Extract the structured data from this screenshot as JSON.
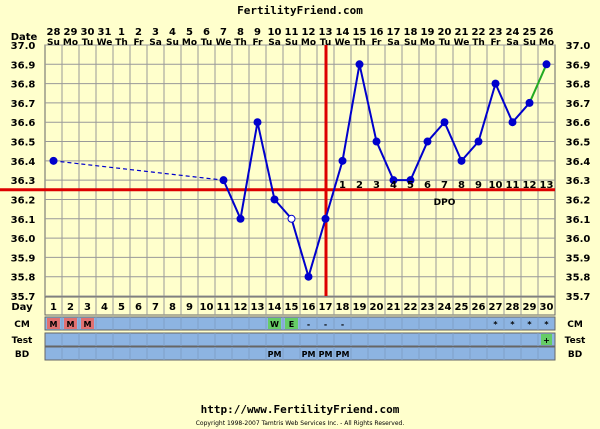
{
  "header": {
    "site": "FertilityFriend.com",
    "date_label": "Date",
    "day_label": "Day",
    "dpo_label": "DPO"
  },
  "footer": {
    "url": "http://www.FertilityFriend.com",
    "copyright": "Copyright 1998-2007 Tamtris Web Services Inc. - All Rights Reserved."
  },
  "rows": {
    "ch": "CM",
    "test": "Test",
    "bd": "BD"
  },
  "colors": {
    "background": "#ffffcc",
    "plot_bg": "#ffffcc",
    "grid": "#999999",
    "temp_line": "#0000cc",
    "coverline": "#dd0000",
    "strip": "#8db4e2",
    "menses": "#e07070",
    "fertile": "#66cc66",
    "projection": "#22aa22"
  },
  "chart_data": {
    "type": "line",
    "dates": [
      "28",
      "29",
      "30",
      "31",
      "1",
      "2",
      "3",
      "4",
      "5",
      "6",
      "7",
      "8",
      "9",
      "10",
      "11",
      "12",
      "13",
      "14",
      "15",
      "16",
      "17",
      "18",
      "19",
      "20",
      "21",
      "22",
      "23",
      "24",
      "25",
      "26"
    ],
    "weekdays": [
      "Su",
      "Mo",
      "Tu",
      "We",
      "Th",
      "Fr",
      "Sa",
      "Su",
      "Mo",
      "Tu",
      "We",
      "Th",
      "Fr",
      "Sa",
      "Su",
      "Mo",
      "Tu",
      "We",
      "Th",
      "Fr",
      "Sa",
      "Su",
      "Mo",
      "Tu",
      "We",
      "Th",
      "Fr",
      "Sa",
      "Su",
      "Mo"
    ],
    "cycle_days": [
      "1",
      "2",
      "3",
      "4",
      "5",
      "6",
      "7",
      "8",
      "9",
      "10",
      "11",
      "12",
      "13",
      "14",
      "15",
      "16",
      "17",
      "18",
      "19",
      "20",
      "21",
      "22",
      "23",
      "24",
      "25",
      "26",
      "27",
      "28",
      "29",
      "30"
    ],
    "temperatures": [
      36.4,
      null,
      null,
      null,
      null,
      null,
      null,
      null,
      null,
      null,
      36.3,
      36.1,
      36.6,
      36.2,
      36.1,
      35.8,
      36.1,
      36.4,
      36.9,
      36.5,
      36.3,
      36.3,
      36.5,
      36.6,
      36.4,
      36.5,
      36.8,
      36.6,
      36.7,
      36.9
    ],
    "discarded": [
      false,
      false,
      false,
      false,
      false,
      false,
      false,
      false,
      false,
      false,
      false,
      false,
      false,
      false,
      true,
      false,
      false,
      false,
      false,
      false,
      false,
      false,
      false,
      false,
      false,
      false,
      false,
      false,
      false,
      false
    ],
    "dotted_segment_days": [
      1,
      11
    ],
    "projected_segment_days": [
      29,
      30
    ],
    "ylim": [
      35.7,
      37.0
    ],
    "yticks": [
      "37.0",
      "36.9",
      "36.8",
      "36.7",
      "36.6",
      "36.5",
      "36.4",
      "36.3",
      "36.2",
      "36.1",
      "36.0",
      "35.9",
      "35.8",
      "35.7"
    ],
    "coverline": 36.25,
    "ovulation_day": 17,
    "dpo_labels": [
      "1",
      "2",
      "3",
      "4",
      "5",
      "6",
      "7",
      "8",
      "9",
      "10",
      "11",
      "12",
      "13"
    ],
    "cervical_mucus": [
      "M",
      "M",
      "M",
      "",
      "",
      "",
      "",
      "",
      "",
      "",
      "",
      "",
      "",
      "W",
      "E",
      "-",
      "-",
      "-",
      "",
      "",
      "",
      "",
      "",
      "",
      "",
      "",
      "*",
      "*",
      "*",
      "*"
    ],
    "tests": [
      "",
      "",
      "",
      "",
      "",
      "",
      "",
      "",
      "",
      "",
      "",
      "",
      "",
      "",
      "",
      "",
      "",
      "",
      "",
      "",
      "",
      "",
      "",
      "",
      "",
      "",
      "",
      "",
      "",
      "+"
    ],
    "intercourse": [
      "",
      "",
      "",
      "",
      "",
      "",
      "",
      "",
      "",
      "",
      "",
      "",
      "",
      "PM",
      "",
      "PM",
      "PM",
      "PM",
      "",
      "",
      "",
      "",
      "",
      "",
      "",
      "",
      "",
      "",
      "",
      ""
    ]
  }
}
